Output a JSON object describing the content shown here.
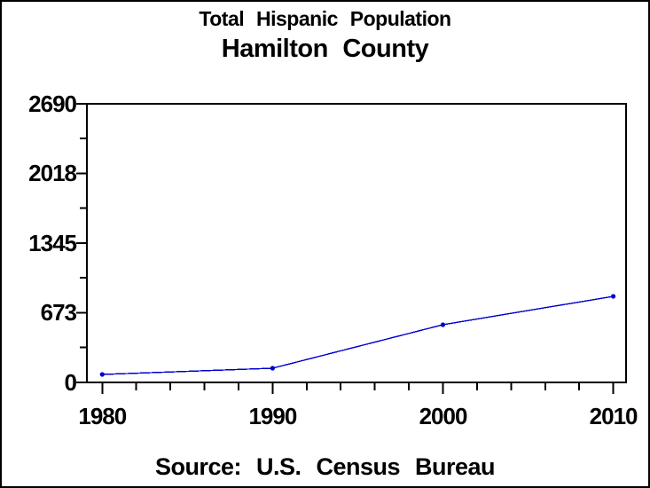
{
  "window": {
    "background": "#ffffff",
    "border_color": "#000000",
    "text_color": "#000000"
  },
  "header": {
    "title": "Total Hispanic Population",
    "subtitle": "Hamilton County"
  },
  "footer": {
    "source_label": "Source: U.S. Census Bureau"
  },
  "chart_data": {
    "type": "line",
    "title": "Total Hispanic Population",
    "subtitle": "Hamilton County",
    "source": "Source: U.S. Census Bureau",
    "xlabel": "",
    "ylabel": "",
    "x": [
      1980,
      1990,
      2000,
      2010
    ],
    "values": [
      77,
      137,
      557,
      831
    ],
    "series": [
      {
        "name": "Total Hispanic Population",
        "color": "#0000cc",
        "values": [
          77,
          137,
          557,
          831
        ]
      }
    ],
    "x_major_ticks": [
      1980,
      1990,
      2000,
      2010
    ],
    "x_tick_labels": [
      "1980",
      "1990",
      "2000",
      "2010"
    ],
    "x_minor_tick_step_years": 2,
    "y_major_ticks": [
      0,
      673,
      1345,
      2018,
      2690
    ],
    "y_tick_labels": [
      "0",
      "673",
      "1345",
      "2018",
      "2690"
    ],
    "y_minor_ticks_midway": true,
    "xlim": [
      1979.1,
      2010.75
    ],
    "ylim": [
      0,
      2690
    ],
    "grid": false,
    "legend_position": "none",
    "line_color": "#0000cc",
    "marker": "dot",
    "axis_color": "#000000"
  }
}
